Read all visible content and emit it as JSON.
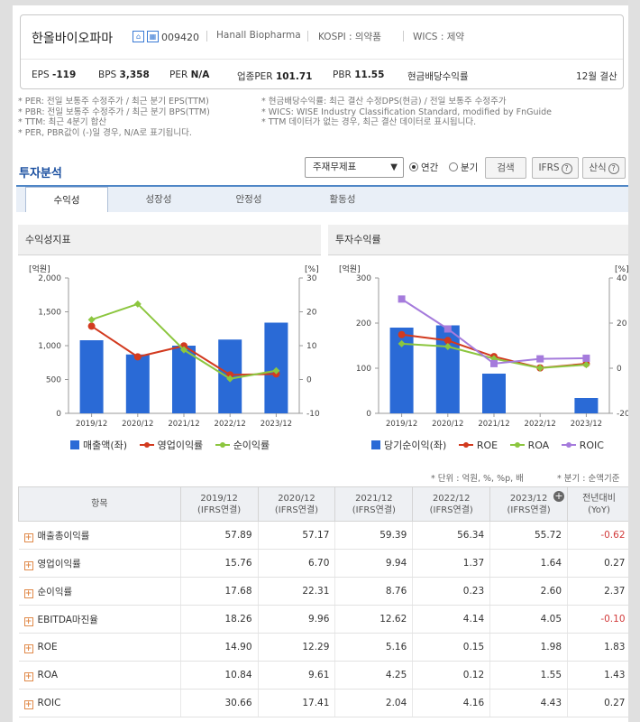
{
  "company": {
    "name": "한올바이오파마",
    "code": "009420",
    "eng_name": "Hanall Biopharma",
    "market": "KOSPI : 의약품",
    "wics": "WICS : 제약",
    "icon1": "home-icon",
    "icon2": "building-icon"
  },
  "stats": {
    "eps_label": "EPS",
    "eps": "-119",
    "bps_label": "BPS",
    "bps": "3,358",
    "per_label": "PER",
    "per": "N/A",
    "sector_per_label": "업종PER",
    "sector_per": "101.71",
    "pbr_label": "PBR",
    "pbr": "11.55",
    "div_label": "현금배당수익률",
    "settle": "12월 결산"
  },
  "notes_left": [
    "* PER: 전일 보통주 수정주가 / 최근 분기 EPS(TTM)",
    "* PBR: 전일 보통주 수정주가 / 최근 분기 BPS(TTM)",
    "* TTM: 최근 4분기 합산",
    "* PER, PBR값이 (-)일 경우, N/A로 표기됩니다."
  ],
  "notes_right": [
    "* 현금배당수익률: 최근 결산 수정DPS(현금) / 전일 보통주 수정주가",
    "* WICS: WISE Industry Classification Standard, modified by FnGuide",
    "* TTM 데이터가 없는 경우, 최근 결산 데이터로 표시됩니다."
  ],
  "analysis": {
    "title": "투자분석",
    "select_value": "주재무제표",
    "radio_annual": "연간",
    "radio_quarter": "분기",
    "search_btn": "검색",
    "ifrs_btn": "IFRS",
    "formula_btn": "산식",
    "help_icon": "question-icon"
  },
  "tabs": [
    "수익성",
    "성장성",
    "안정성",
    "활동성"
  ],
  "panels": {
    "left_title": "수익성지표",
    "right_title": "투자수익률"
  },
  "legend_left": [
    "매출액(좌)",
    "영업이익률",
    "순이익률"
  ],
  "legend_right": [
    "당기순이익(좌)",
    "ROE",
    "ROA",
    "ROIC"
  ],
  "chart_data": [
    {
      "type": "bar",
      "title": "수익성지표",
      "categories": [
        "2019/12",
        "2020/12",
        "2021/12",
        "2022/12",
        "2023/12"
      ],
      "y_left_unit": "[억원]",
      "y_right_unit": "[%]",
      "y_left_ticks": [
        "2,000",
        "1,500",
        "1,000",
        "500",
        "0"
      ],
      "y_right_ticks": [
        "30",
        "20",
        "10",
        "0",
        "-10"
      ],
      "ylim_left": [
        0,
        2000
      ],
      "ylim_right": [
        -10,
        30
      ],
      "bar_color": "#2a6ad6",
      "series": [
        {
          "name": "매출액(좌)",
          "kind": "bar",
          "axis": "left",
          "values": [
            1080,
            870,
            1000,
            1090,
            1340
          ]
        },
        {
          "name": "영업이익률",
          "kind": "line",
          "axis": "right",
          "color": "#d23a1f",
          "values": [
            15.76,
            6.7,
            9.94,
            1.37,
            1.64
          ]
        },
        {
          "name": "순이익률",
          "kind": "line",
          "axis": "right",
          "color": "#8cc63f",
          "values": [
            17.68,
            22.31,
            8.76,
            0.23,
            2.6
          ]
        }
      ]
    },
    {
      "type": "bar",
      "title": "투자수익률",
      "categories": [
        "2019/12",
        "2020/12",
        "2021/12",
        "2022/12",
        "2023/12"
      ],
      "y_left_unit": "[억원]",
      "y_right_unit": "[%]",
      "y_left_ticks": [
        "300",
        "200",
        "100",
        "0"
      ],
      "y_right_ticks": [
        "40",
        "20",
        "0",
        "-20"
      ],
      "ylim_left": [
        0,
        300
      ],
      "ylim_right": [
        -20,
        40
      ],
      "bar_color": "#2a6ad6",
      "series": [
        {
          "name": "당기순이익(좌)",
          "kind": "bar",
          "axis": "left",
          "values": [
            190,
            195,
            88,
            0,
            34
          ]
        },
        {
          "name": "ROE",
          "kind": "line",
          "axis": "right",
          "color": "#d23a1f",
          "values": [
            14.9,
            12.29,
            5.16,
            0.15,
            1.98
          ]
        },
        {
          "name": "ROA",
          "kind": "line",
          "axis": "right",
          "color": "#8cc63f",
          "values": [
            10.84,
            9.61,
            4.25,
            0.12,
            1.55
          ]
        },
        {
          "name": "ROIC",
          "kind": "line",
          "axis": "right",
          "color": "#a57bdc",
          "values": [
            30.66,
            17.41,
            2.04,
            4.16,
            4.43
          ]
        }
      ]
    }
  ],
  "table": {
    "unit_note": "* 단위 : 억원, %, %p, 배",
    "quarter_note": "* 분기 : 순액기준",
    "header_item": "항목",
    "columns": [
      {
        "year": "2019/12",
        "sub": "(IFRS연결)"
      },
      {
        "year": "2020/12",
        "sub": "(IFRS연결)"
      },
      {
        "year": "2021/12",
        "sub": "(IFRS연결)"
      },
      {
        "year": "2022/12",
        "sub": "(IFRS연결)"
      },
      {
        "year": "2023/12",
        "sub": "(IFRS연결)"
      },
      {
        "year": "전년대비",
        "sub": "(YoY)"
      }
    ],
    "rows": [
      {
        "label": "매출총이익률",
        "values": [
          "57.89",
          "57.17",
          "59.39",
          "56.34",
          "55.72",
          "-0.62"
        ]
      },
      {
        "label": "영업이익률",
        "values": [
          "15.76",
          "6.70",
          "9.94",
          "1.37",
          "1.64",
          "0.27"
        ]
      },
      {
        "label": "순이익률",
        "values": [
          "17.68",
          "22.31",
          "8.76",
          "0.23",
          "2.60",
          "2.37"
        ]
      },
      {
        "label": "EBITDA마진율",
        "values": [
          "18.26",
          "9.96",
          "12.62",
          "4.14",
          "4.05",
          "-0.10"
        ]
      },
      {
        "label": "ROE",
        "values": [
          "14.90",
          "12.29",
          "5.16",
          "0.15",
          "1.98",
          "1.83"
        ]
      },
      {
        "label": "ROA",
        "values": [
          "10.84",
          "9.61",
          "4.25",
          "0.12",
          "1.55",
          "1.43"
        ]
      },
      {
        "label": "ROIC",
        "values": [
          "30.66",
          "17.41",
          "2.04",
          "4.16",
          "4.43",
          "0.27"
        ]
      }
    ]
  }
}
